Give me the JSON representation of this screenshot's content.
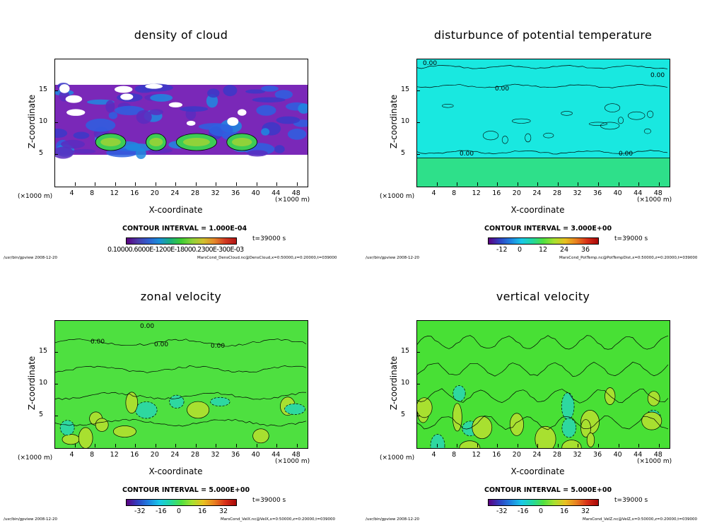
{
  "panels": [
    {
      "title": "density of cloud",
      "ylabel": "Z-coordinate",
      "xlabel": "X-coordinate",
      "x_unit_left": "(×1000 m)",
      "x_unit_right": "(×1000 m)",
      "contour_interval": "CONTOUR INTERVAL = 1.000E-04",
      "time_label": "t=39000 s",
      "colorbar_ticks_text": "0.10000.6000E-1200E-18000.2300E-300E-03",
      "footer_left": "/usr/bin/gpview   2008-12-20",
      "footer_right": "MarsCond_DensCloud.nc@DensCloud,x=0:50000,z=0:20000,t=039000",
      "colors": {
        "colorbar": [
          "#5b0080",
          "#4b3aa8",
          "#2f5fd0",
          "#1a8fd8",
          "#19b07c",
          "#3dcc33",
          "#8fd23a",
          "#d0c02e",
          "#e5882a",
          "#d23b22",
          "#b01414"
        ]
      }
    },
    {
      "title": "disturbunce of potential temperature",
      "ylabel": "Z-coordinate",
      "xlabel": "X-coordinate",
      "x_unit_left": "(×1000 m)",
      "x_unit_right": "(×1000 m)",
      "contour_interval": "CONTOUR INTERVAL = 3.000E+00",
      "time_label": "t=39000 s",
      "colorbar_ticks": [
        "-12",
        "0",
        "12",
        "24",
        "36"
      ],
      "footer_left": "/usr/bin/gpview   2008-12-20",
      "footer_right": "MarsCond_PotTemp.nc@PotTempDist,x=0:50000,z=0:20000,t=039000",
      "contour_labels": [
        "0.00",
        "0.00",
        "0.00",
        "0.00",
        "0.00"
      ],
      "colors": {
        "colorbar": [
          "#5b0080",
          "#3040c0",
          "#1f80e0",
          "#19c8e8",
          "#22d8a0",
          "#50e040",
          "#a8e030",
          "#e8c020",
          "#e88020",
          "#d83018",
          "#a80808"
        ]
      }
    },
    {
      "title": "zonal velocity",
      "ylabel": "Z-coordinate",
      "xlabel": "X-coordinate",
      "x_unit_left": "(×1000 m)",
      "x_unit_right": "(×1000 m)",
      "contour_interval": "CONTOUR INTERVAL = 5.000E+00",
      "time_label": "t=39000 s",
      "colorbar_ticks": [
        "-32",
        "-16",
        "0",
        "16",
        "32"
      ],
      "footer_left": "/usr/bin/gpview   2008-12-20",
      "footer_right": "MarsCond_VelX.nc@VelX,x=0:50000,z=0:20000,t=039000",
      "contour_labels": [
        "0.00",
        "0.00",
        "0.00",
        "0.00"
      ],
      "colors": {
        "colorbar": [
          "#5b0080",
          "#3040c0",
          "#1f80e0",
          "#19c8e8",
          "#22d8a0",
          "#50e040",
          "#a8e030",
          "#e8c020",
          "#e88020",
          "#d83018",
          "#a80808"
        ]
      }
    },
    {
      "title": "vertical velocity",
      "ylabel": "Z-coordinate",
      "xlabel": "X-coordinate",
      "x_unit_left": "(×1000 m)",
      "x_unit_right": "(×1000 m)",
      "contour_interval": "CONTOUR INTERVAL = 5.000E+00",
      "time_label": "t=39000 s",
      "colorbar_ticks": [
        "-32",
        "-16",
        "0",
        "16",
        "32"
      ],
      "footer_left": "/usr/bin/gpview   2008-12-20",
      "footer_right": "MarsCond_VelZ.nc@VelZ,x=0:50000,z=0:20000,t=039000",
      "colors": {
        "colorbar": [
          "#5b0080",
          "#3040c0",
          "#1f80e0",
          "#19c8e8",
          "#22d8a0",
          "#50e040",
          "#a8e030",
          "#e8c020",
          "#e88020",
          "#d83018",
          "#a80808"
        ]
      }
    }
  ],
  "chart_data": [
    {
      "type": "heatmap",
      "title": "density of cloud",
      "xlabel": "X-coordinate",
      "ylabel": "Z-coordinate",
      "x_unit": "(×1000 m)",
      "xlim": [
        0,
        50
      ],
      "ylim": [
        0,
        20
      ],
      "x_ticks": [
        4,
        8,
        12,
        16,
        20,
        24,
        28,
        32,
        36,
        40,
        44,
        48
      ],
      "y_ticks": [
        5,
        10,
        15
      ],
      "contour_interval": "1.000E-04",
      "time": "t=39000 s",
      "cloud_layer_z": [
        5,
        16
      ],
      "dense_cores_x": [
        [
          8,
          14
        ],
        [
          18,
          22
        ],
        [
          24,
          32
        ],
        [
          34,
          40
        ]
      ]
    },
    {
      "type": "heatmap",
      "title": "disturbunce of potential temperature",
      "xlabel": "X-coordinate",
      "ylabel": "Z-coordinate",
      "x_unit": "(×1000 m)",
      "xlim": [
        0,
        50
      ],
      "ylim": [
        0,
        20
      ],
      "x_ticks": [
        4,
        8,
        12,
        16,
        20,
        24,
        28,
        32,
        36,
        40,
        44,
        48
      ],
      "y_ticks": [
        5,
        10,
        15
      ],
      "contour_interval": "3.000E+00",
      "time": "t=39000 s",
      "colorbar_ticks": [
        -12,
        0,
        12,
        24,
        36
      ],
      "interface_z": 4.5
    },
    {
      "type": "heatmap",
      "title": "zonal velocity",
      "xlabel": "X-coordinate",
      "ylabel": "Z-coordinate",
      "x_unit": "(×1000 m)",
      "xlim": [
        0,
        50
      ],
      "ylim": [
        0,
        20
      ],
      "x_ticks": [
        4,
        8,
        12,
        16,
        20,
        24,
        28,
        32,
        36,
        40,
        44,
        48
      ],
      "y_ticks": [
        5,
        10,
        15
      ],
      "contour_interval": "5.000E+00",
      "time": "t=39000 s",
      "colorbar_ticks": [
        -32,
        -16,
        0,
        16,
        32
      ]
    },
    {
      "type": "heatmap",
      "title": "vertical velocity",
      "xlabel": "X-coordinate",
      "ylabel": "Z-coordinate",
      "x_unit": "(×1000 m)",
      "xlim": [
        0,
        50
      ],
      "ylim": [
        0,
        20
      ],
      "x_ticks": [
        4,
        8,
        12,
        16,
        20,
        24,
        28,
        32,
        36,
        40,
        44,
        48
      ],
      "y_ticks": [
        5,
        10,
        15
      ],
      "contour_interval": "5.000E+00",
      "time": "t=39000 s",
      "colorbar_ticks": [
        -32,
        -16,
        0,
        16,
        32
      ]
    }
  ]
}
